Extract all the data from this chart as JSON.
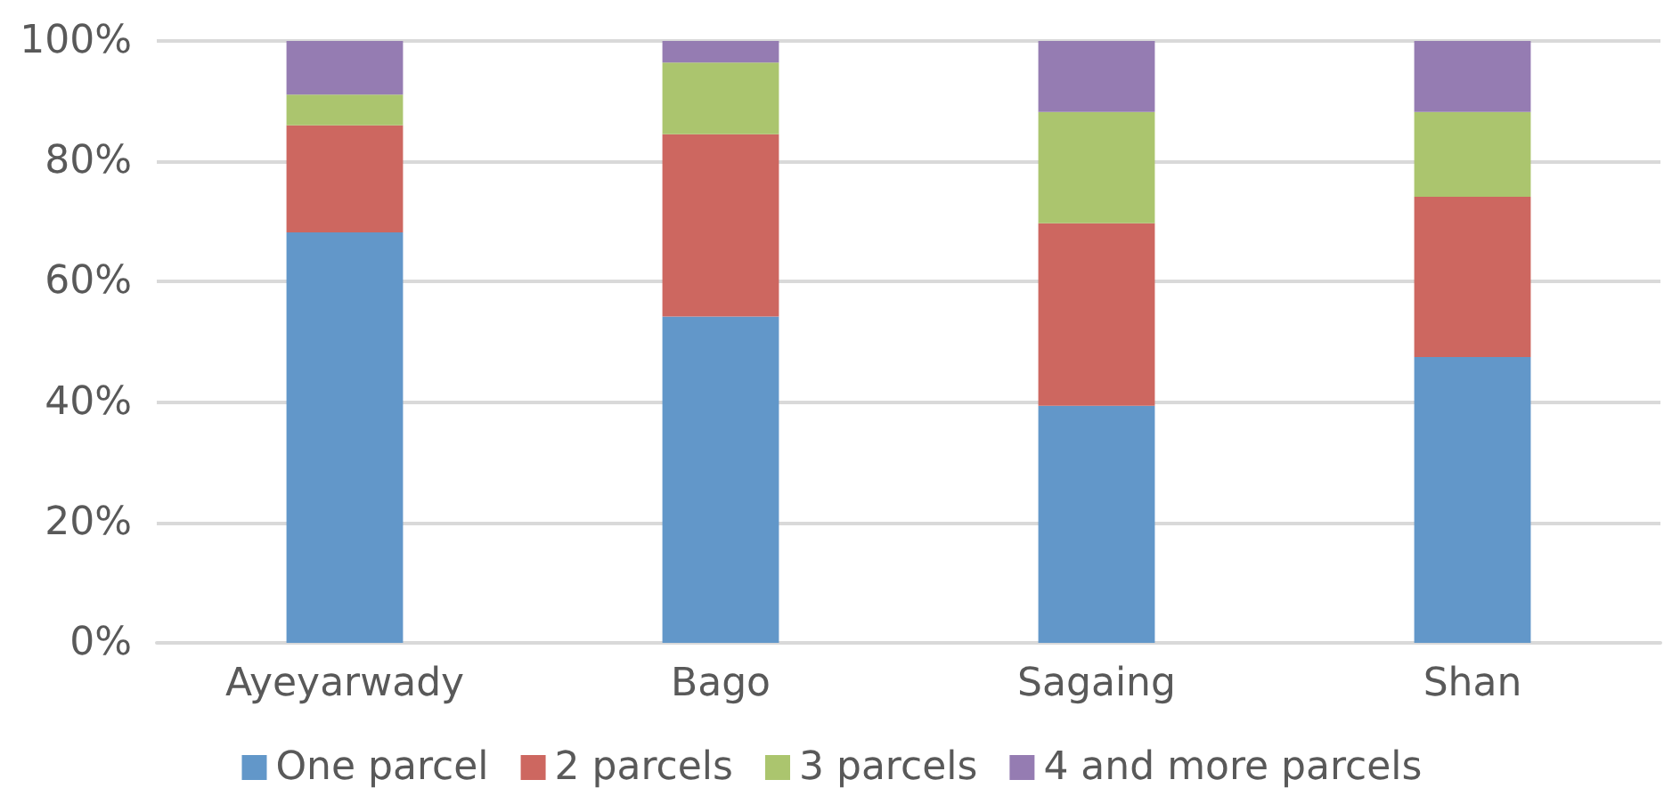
{
  "chart_data": {
    "type": "bar",
    "stacked": true,
    "categories": [
      "Ayeyarwady",
      "Bago",
      "Sagaing",
      "Shan"
    ],
    "series": [
      {
        "name": "One parcel",
        "color": "#6297c9",
        "values": [
          68.2,
          54.2,
          39.4,
          47.5
        ]
      },
      {
        "name": "2 parcels",
        "color": "#cd6760",
        "values": [
          17.8,
          30.3,
          30.3,
          26.6
        ]
      },
      {
        "name": "3 parcels",
        "color": "#abc56e",
        "values": [
          5.1,
          11.9,
          18.5,
          14.1
        ]
      },
      {
        "name": "4 and more parcels",
        "color": "#957cb2",
        "values": [
          8.9,
          3.6,
          11.8,
          11.8
        ]
      }
    ],
    "ylim": [
      0,
      100
    ],
    "yticks": [
      {
        "value": 0,
        "label": "0%"
      },
      {
        "value": 20,
        "label": "20%"
      },
      {
        "value": 40,
        "label": "40%"
      },
      {
        "value": 60,
        "label": "60%"
      },
      {
        "value": 80,
        "label": "80%"
      },
      {
        "value": 100,
        "label": "100%"
      }
    ],
    "grid": "y",
    "legend": "bottom"
  }
}
